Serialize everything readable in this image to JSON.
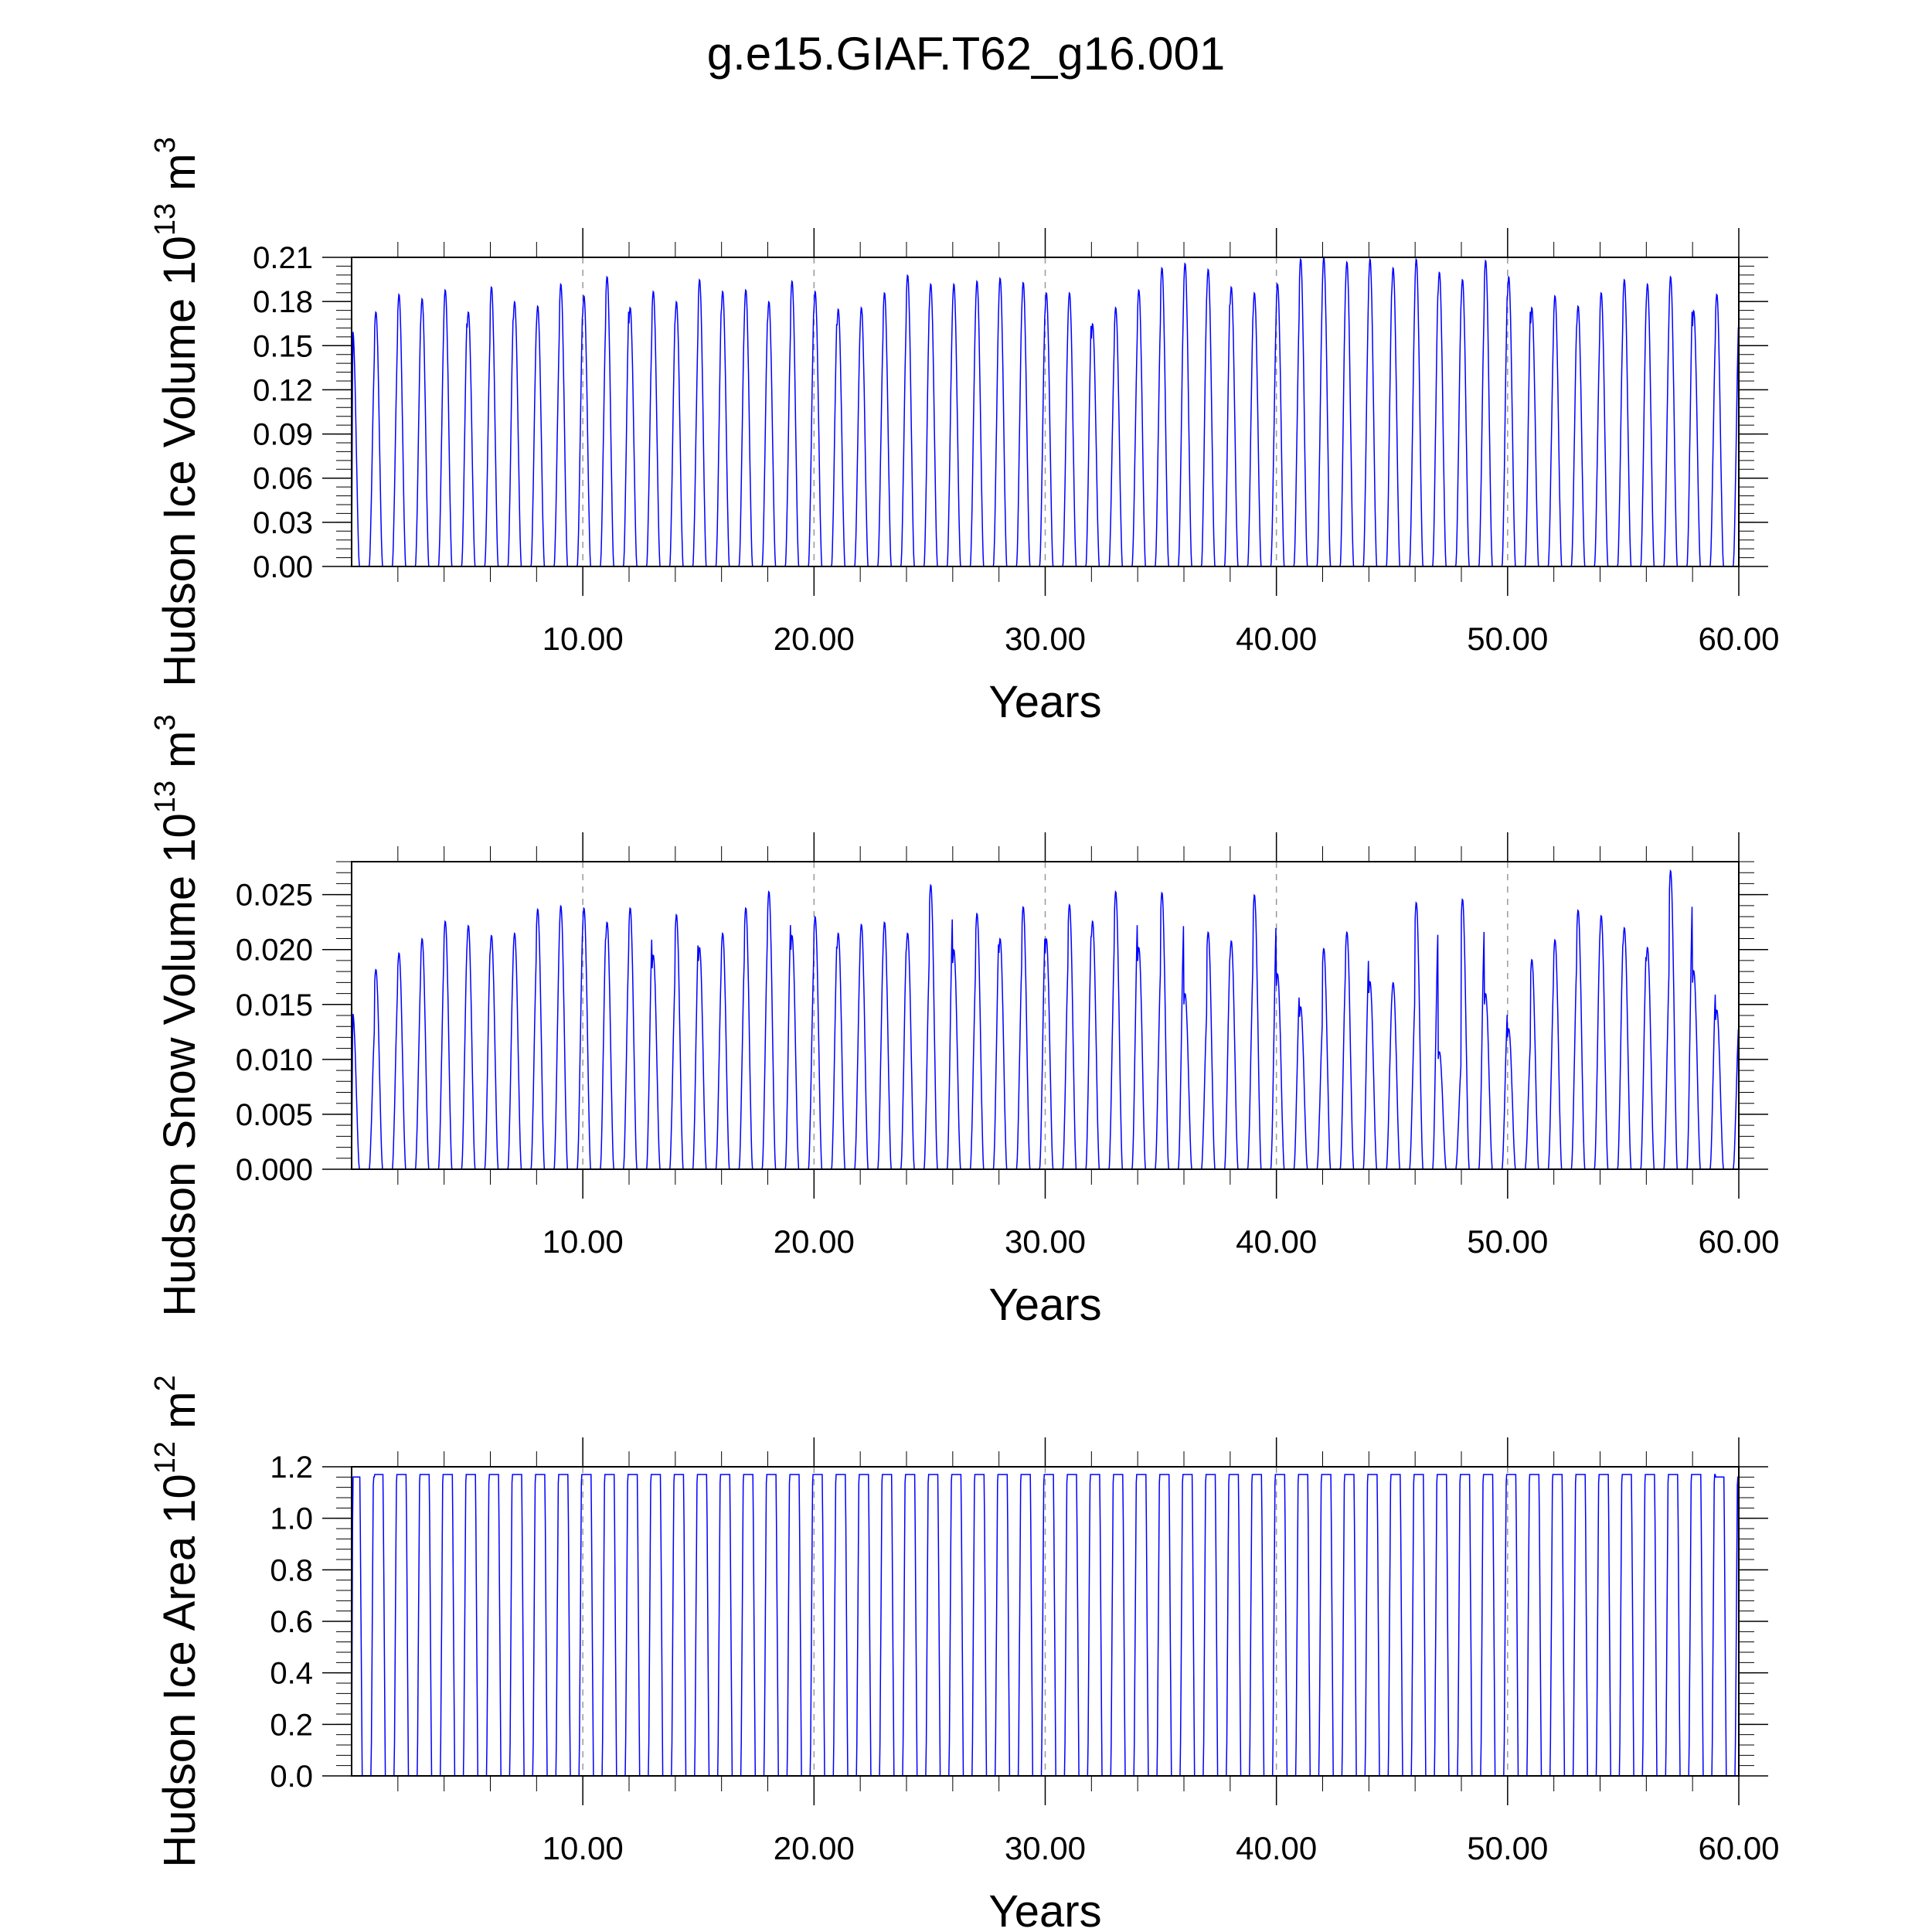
{
  "title": "g.e15.GIAF.T62_g16.001",
  "series_color": "#0000ff",
  "chart_data": [
    {
      "type": "line",
      "ylabel": "Hudson Ice Volume 10",
      "ylabel_exp": "13",
      "ylabel_unit": " m",
      "ylabel_unit_exp": "3",
      "xlabel": "Years",
      "xlim": [
        0,
        60
      ],
      "ylim": [
        0,
        0.21
      ],
      "xticks": [
        10,
        20,
        30,
        40,
        50,
        60
      ],
      "xtick_labels": [
        "10.00",
        "20.00",
        "30.00",
        "40.00",
        "50.00",
        "60.00"
      ],
      "yticks": [
        0,
        0.03,
        0.06,
        0.09,
        0.12,
        0.15,
        0.18,
        0.21
      ],
      "ytick_labels": [
        "0.00",
        "0.03",
        "0.06",
        "0.09",
        "0.12",
        "0.15",
        "0.18",
        "0.21"
      ],
      "grid": "dashed vertical at major x ticks",
      "series": [
        {
          "values": [
            0.16,
            0.173,
            0.185,
            0.182,
            0.188,
            0.173,
            0.19,
            0.18,
            0.177,
            0.192,
            0.184,
            0.197,
            0.176,
            0.187,
            0.18,
            0.195,
            0.187,
            0.188,
            0.18,
            0.194,
            0.187,
            0.175,
            0.176,
            0.186,
            0.198,
            0.192,
            0.192,
            0.194,
            0.196,
            0.193,
            0.186,
            0.186,
            0.165,
            0.176,
            0.188,
            0.203,
            0.206,
            0.202,
            0.19,
            0.186,
            0.192,
            0.209,
            0.21,
            0.207,
            0.209,
            0.203,
            0.209,
            0.2,
            0.195,
            0.208,
            0.197,
            0.176,
            0.184,
            0.177,
            0.186,
            0.195,
            0.192,
            0.197,
            0.174,
            0.185
          ]
        }
      ]
    },
    {
      "type": "line",
      "ylabel": "Hudson Snow Volume 10",
      "ylabel_exp": "13",
      "ylabel_unit": " m",
      "ylabel_unit_exp": "3",
      "xlabel": "Years",
      "xlim": [
        0,
        60
      ],
      "ylim": [
        0,
        0.028
      ],
      "xticks": [
        10,
        20,
        30,
        40,
        50,
        60
      ],
      "xtick_labels": [
        "10.00",
        "20.00",
        "30.00",
        "40.00",
        "50.00",
        "60.00"
      ],
      "yticks": [
        0,
        0.005,
        0.01,
        0.015,
        0.02,
        0.025
      ],
      "ytick_labels": [
        "0.000",
        "0.005",
        "0.010",
        "0.015",
        "0.020",
        "0.025"
      ],
      "grid": "dashed vertical at major x ticks",
      "series": [
        {
          "values": [
            0.0142,
            0.0182,
            0.0197,
            0.021,
            0.0226,
            0.0222,
            0.0213,
            0.0215,
            0.0237,
            0.024,
            0.0238,
            0.0225,
            0.0238,
            0.0195,
            0.0232,
            0.0202,
            0.0215,
            0.0238,
            0.0253,
            0.0213,
            0.023,
            0.0215,
            0.0223,
            0.0225,
            0.0215,
            0.0259,
            0.02,
            0.0233,
            0.021,
            0.0239,
            0.021,
            0.0241,
            0.0226,
            0.0253,
            0.0202,
            0.0252,
            0.016,
            0.0216,
            0.0208,
            0.025,
            0.0178,
            0.0148,
            0.0201,
            0.0216,
            0.0171,
            0.017,
            0.0243,
            0.0107,
            0.0246,
            0.016,
            0.0128,
            0.0191,
            0.0209,
            0.0236,
            0.0231,
            0.022,
            0.0202,
            0.0272,
            0.0181,
            0.0145
          ]
        }
      ]
    },
    {
      "type": "line",
      "ylabel": "Hudson Ice Area 10",
      "ylabel_exp": "12",
      "ylabel_unit": " m",
      "ylabel_unit_exp": "2",
      "xlabel": "Years",
      "xlim": [
        0,
        60
      ],
      "ylim": [
        0,
        1.2
      ],
      "xticks": [
        10,
        20,
        30,
        40,
        50,
        60
      ],
      "xtick_labels": [
        "10.00",
        "20.00",
        "30.00",
        "40.00",
        "50.00",
        "60.00"
      ],
      "yticks": [
        0,
        0.2,
        0.4,
        0.6,
        0.8,
        1.0,
        1.2
      ],
      "ytick_labels": [
        "0.0",
        "0.2",
        "0.4",
        "0.6",
        "0.8",
        "1.0",
        "1.2"
      ],
      "grid": "dashed vertical at major x ticks",
      "series": [
        {
          "values": [
            1.16,
            1.17,
            1.17,
            1.17,
            1.17,
            1.17,
            1.17,
            1.17,
            1.17,
            1.17,
            1.17,
            1.17,
            1.17,
            1.17,
            1.17,
            1.17,
            1.17,
            1.17,
            1.17,
            1.17,
            1.17,
            1.17,
            1.17,
            1.17,
            1.17,
            1.17,
            1.17,
            1.17,
            1.17,
            1.17,
            1.17,
            1.17,
            1.17,
            1.17,
            1.17,
            1.17,
            1.17,
            1.17,
            1.17,
            1.17,
            1.17,
            1.17,
            1.17,
            1.17,
            1.17,
            1.17,
            1.17,
            1.17,
            1.17,
            1.17,
            1.17,
            1.17,
            1.17,
            1.17,
            1.17,
            1.17,
            1.17,
            1.17,
            1.17,
            1.16
          ]
        }
      ]
    }
  ]
}
